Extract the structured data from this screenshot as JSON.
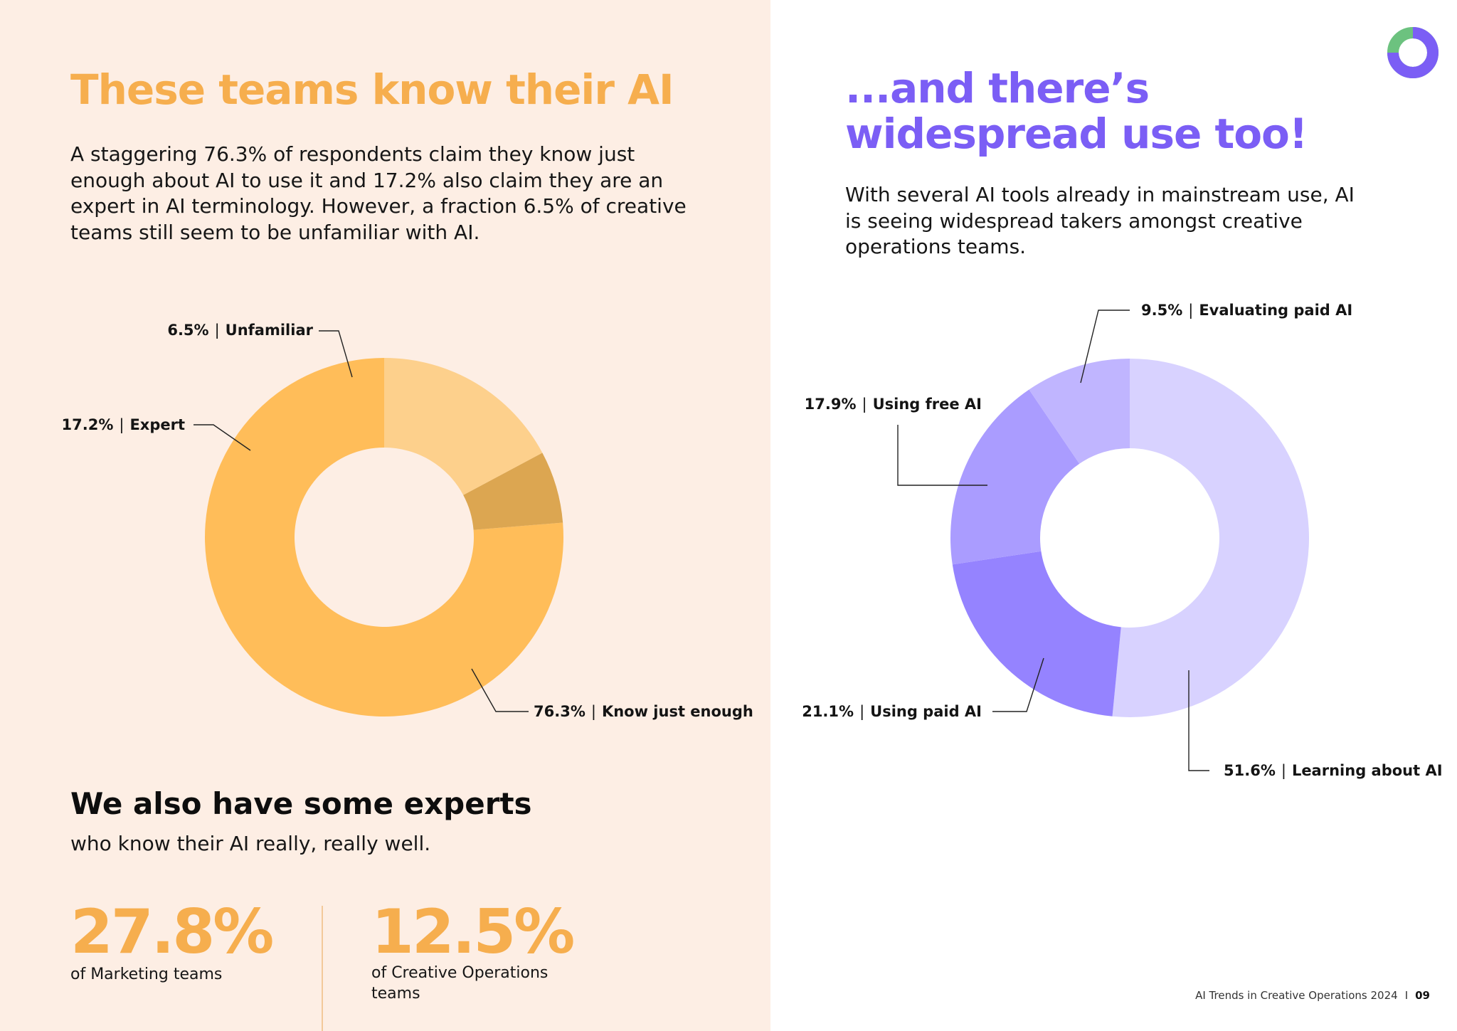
{
  "left": {
    "heading": "These teams know their AI",
    "body": "A staggering 76.3% of respondents claim they know just enough about AI to use it and 17.2% also claim they are an expert in AI terminology. However, a fraction 6.5% of creative teams still seem to be unfamiliar with AI.",
    "experts_heading": "We also have some experts",
    "experts_sub": "who know their AI really, really well.",
    "stats": [
      {
        "value": "27.8%",
        "caption": "of Marketing teams"
      },
      {
        "value": "12.5%",
        "caption": "of Creative Operations teams"
      }
    ]
  },
  "right": {
    "heading_line1": "...and there’s",
    "heading_line2": "widespread use too!",
    "body": "With several AI tools already in mainstream use, AI is seeing widespread takers amongst creative operations teams."
  },
  "footer": {
    "title": "AI Trends in Creative Operations 2024",
    "separator": "I",
    "page": "09"
  },
  "colors": {
    "orange_accent": "#f6ae4e",
    "purple_accent": "#7b5ef5",
    "left_bg": "#fdeee4"
  },
  "chart_data": [
    {
      "type": "donut",
      "unit": "%",
      "separator": "|",
      "slices": [
        {
          "label": "Know just enough",
          "value": 76.3,
          "display": "76.3%",
          "color": "#ffbd59"
        },
        {
          "label": "Expert",
          "value": 17.2,
          "display": "17.2%",
          "color": "#fdd08c"
        },
        {
          "label": "Unfamiliar",
          "value": 6.5,
          "display": "6.5%",
          "color": "#dca651"
        }
      ]
    },
    {
      "type": "donut",
      "unit": "%",
      "separator": "|",
      "slices": [
        {
          "label": "Learning about AI",
          "value": 51.6,
          "display": "51.6%",
          "color": "#d8d2ff"
        },
        {
          "label": "Using paid AI",
          "value": 21.1,
          "display": "21.1%",
          "color": "#9583ff"
        },
        {
          "label": "Using free AI",
          "value": 17.9,
          "display": "17.9%",
          "color": "#aa9cff"
        },
        {
          "label": "Evaluating paid AI",
          "value": 9.5,
          "display": "9.5%",
          "color": "#c0b5ff"
        }
      ]
    }
  ]
}
